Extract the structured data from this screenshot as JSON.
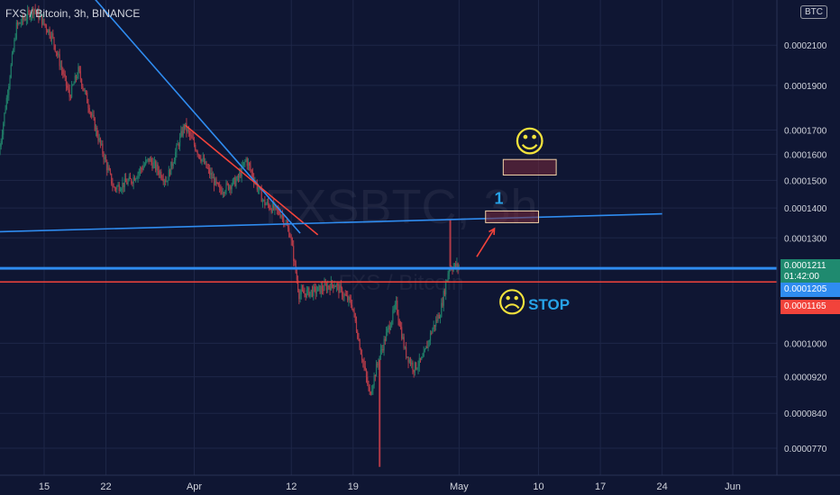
{
  "symbol_title": "FXS / Bitcoin, 3h, BINANCE",
  "currency_button": "BTC",
  "watermark": {
    "symbol": "FXSBTC, 3h",
    "name": "FXS / Bitcoin"
  },
  "colors": {
    "background": "#0f1633",
    "candle_up": "#1f7a66",
    "candle_down": "#b03a48",
    "blue_line": "#2f8cf0",
    "red_line": "#f2433b",
    "smiley": "#f3e23c",
    "annotation_text": "#27a3e8"
  },
  "annotations": {
    "target_label": "1",
    "stop_label": "STOP",
    "happy_face": "☺",
    "sad_face": "☹"
  },
  "price_tags": {
    "last_price": "0.0001211",
    "countdown": "01:42:00",
    "blue_level": "0.0001205",
    "red_level": "0.0001165"
  },
  "chart_data": {
    "type": "candlestick",
    "title": "FXS / Bitcoin, 3h, BINANCE",
    "timeframe": "3h",
    "exchange": "BINANCE",
    "y_axis": {
      "scale": "log",
      "tick_labels": [
        "0.0002100",
        "0.0001900",
        "0.0001700",
        "0.0001600",
        "0.0001500",
        "0.0001400",
        "0.0001300",
        "0.0001000",
        "0.0000920",
        "0.0000840",
        "0.0000770"
      ],
      "tick_values": [
        0.00021,
        0.00019,
        0.00017,
        0.00016,
        0.00015,
        0.00014,
        0.00013,
        0.0001,
        9.2e-05,
        8.4e-05,
        7.7e-05
      ],
      "range": [
        7.2e-05,
        0.000235
      ]
    },
    "x_axis": {
      "tick_labels": [
        "15",
        "22",
        "Apr",
        "12",
        "19",
        "May",
        "10",
        "17",
        "24",
        "Jun"
      ],
      "tick_dates": [
        "2021-03-15",
        "2021-03-22",
        "2021-04-01",
        "2021-04-12",
        "2021-04-19",
        "2021-05-01",
        "2021-05-10",
        "2021-05-17",
        "2021-05-24",
        "2021-06-01"
      ],
      "range": [
        "2021-03-10",
        "2021-06-06"
      ]
    },
    "price_path": [
      [
        "2021-03-10",
        0.00016
      ],
      [
        "2021-03-12",
        0.00022
      ],
      [
        "2021-03-14",
        0.00023
      ],
      [
        "2021-03-16",
        0.000215
      ],
      [
        "2021-03-18",
        0.000185
      ],
      [
        "2021-03-19",
        0.000197
      ],
      [
        "2021-03-21",
        0.00017
      ],
      [
        "2021-03-23",
        0.000147
      ],
      [
        "2021-03-25",
        0.00015
      ],
      [
        "2021-03-27",
        0.000158
      ],
      [
        "2021-03-29",
        0.00015
      ],
      [
        "2021-03-31",
        0.000172
      ],
      [
        "2021-04-02",
        0.000158
      ],
      [
        "2021-04-04",
        0.000146
      ],
      [
        "2021-04-06",
        0.00015
      ],
      [
        "2021-04-07",
        0.000158
      ],
      [
        "2021-04-09",
        0.000142
      ],
      [
        "2021-04-11",
        0.000138
      ],
      [
        "2021-04-12",
        0.000131
      ],
      [
        "2021-04-13",
        0.000113
      ],
      [
        "2021-04-15",
        0.000114
      ],
      [
        "2021-04-17",
        0.000116
      ],
      [
        "2021-04-19",
        0.00011
      ],
      [
        "2021-04-20",
        9.8e-05
      ],
      [
        "2021-04-21",
        8.8e-05
      ],
      [
        "2021-04-22",
        9.6e-05
      ],
      [
        "2021-04-23",
        0.000103
      ],
      [
        "2021-04-24",
        0.00011
      ],
      [
        "2021-04-25",
        9.8e-05
      ],
      [
        "2021-04-26",
        9.4e-05
      ],
      [
        "2021-04-27",
        9.6e-05
      ],
      [
        "2021-04-28",
        0.000103
      ],
      [
        "2021-04-29",
        0.000108
      ],
      [
        "2021-04-30",
        0.000121
      ],
      [
        "2021-05-01",
        0.000121
      ]
    ],
    "lines": [
      {
        "color": "blue",
        "from": [
          "2021-03-20",
          0.00024
        ],
        "to": [
          "2021-04-13",
          0.0001315
        ]
      },
      {
        "color": "red",
        "from": [
          "2021-03-31",
          0.000172
        ],
        "to": [
          "2021-04-15",
          0.000131
        ]
      },
      {
        "color": "blue",
        "from": [
          "2021-03-10",
          0.000132
        ],
        "to": [
          "2021-05-24",
          0.000138
        ]
      },
      {
        "color": "blue",
        "level": 0.0001205
      },
      {
        "color": "red",
        "level": 0.0001165
      }
    ],
    "boxes": [
      {
        "from": "2021-05-04",
        "to": "2021-05-10",
        "low": 0.000135,
        "high": 0.000139
      },
      {
        "from": "2021-05-06",
        "to": "2021-05-12",
        "low": 0.000152,
        "high": 0.000158
      }
    ],
    "arrow": {
      "from": [
        "2021-05-03",
        0.000124
      ],
      "to": [
        "2021-05-05",
        0.000133
      ]
    }
  }
}
